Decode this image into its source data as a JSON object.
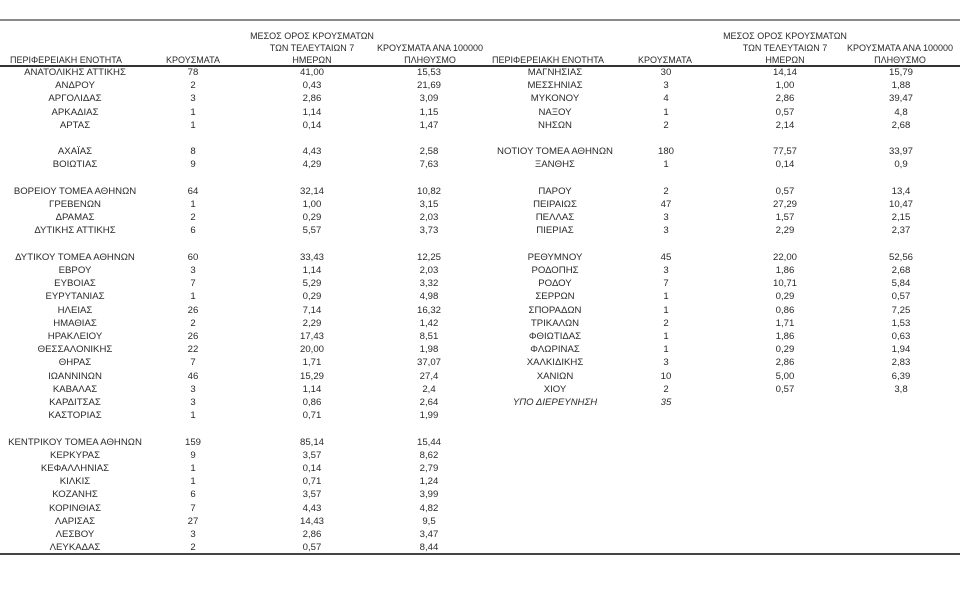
{
  "headers": {
    "region": "ΠΕΡΙΦΕΡΕΙΑΚΗ ΕΝΟΤΗΤΑ",
    "cases": "ΚΡΟΥΣΜΑΤΑ",
    "avg_line1": "ΜΕΣΟΣ ΟΡΟΣ ΚΡΟΥΣΜΑΤΩΝ",
    "avg_line2": "ΤΩΝ ΤΕΛΕΥΤΑΙΩΝ 7",
    "avg_line3": "ΗΜΕΡΩΝ",
    "rate_line1": "ΚΡΟΥΣΜΑΤΑ ΑΝΑ 100000",
    "rate_line2": "ΠΛΗΘΥΣΜΟ"
  },
  "left_rows": [
    {
      "name": "ΑΝΑΤΟΛΙΚΗΣ ΑΤΤΙΚΗΣ",
      "cases": "78",
      "avg": "41,00",
      "rate": "15,53"
    },
    {
      "name": "ΑΝΔΡΟΥ",
      "cases": "2",
      "avg": "0,43",
      "rate": "21,69"
    },
    {
      "name": "ΑΡΓΟΛΙΔΑΣ",
      "cases": "3",
      "avg": "2,86",
      "rate": "3,09"
    },
    {
      "name": "ΑΡΚΑΔΙΑΣ",
      "cases": "1",
      "avg": "1,14",
      "rate": "1,15"
    },
    {
      "name": "ΑΡΤΑΣ",
      "cases": "1",
      "avg": "0,14",
      "rate": "1,47"
    },
    null,
    {
      "name": "ΑΧΑΪΑΣ",
      "cases": "8",
      "avg": "4,43",
      "rate": "2,58"
    },
    {
      "name": "ΒΟΙΩΤΙΑΣ",
      "cases": "9",
      "avg": "4,29",
      "rate": "7,63"
    },
    null,
    {
      "name": "ΒΟΡΕΙΟΥ ΤΟΜΕΑ ΑΘΗΝΩΝ",
      "cases": "64",
      "avg": "32,14",
      "rate": "10,82"
    },
    {
      "name": "ΓΡΕΒΕΝΩΝ",
      "cases": "1",
      "avg": "1,00",
      "rate": "3,15"
    },
    {
      "name": "ΔΡΑΜΑΣ",
      "cases": "2",
      "avg": "0,29",
      "rate": "2,03"
    },
    {
      "name": "ΔΥΤΙΚΗΣ ΑΤΤΙΚΗΣ",
      "cases": "6",
      "avg": "5,57",
      "rate": "3,73"
    },
    null,
    {
      "name": "ΔΥΤΙΚΟΥ ΤΟΜΕΑ ΑΘΗΝΩΝ",
      "cases": "60",
      "avg": "33,43",
      "rate": "12,25"
    },
    {
      "name": "ΕΒΡΟΥ",
      "cases": "3",
      "avg": "1,14",
      "rate": "2,03"
    },
    {
      "name": "ΕΥΒΟΙΑΣ",
      "cases": "7",
      "avg": "5,29",
      "rate": "3,32"
    },
    {
      "name": "ΕΥΡΥΤΑΝΙΑΣ",
      "cases": "1",
      "avg": "0,29",
      "rate": "4,98"
    },
    {
      "name": "ΗΛΕΙΑΣ",
      "cases": "26",
      "avg": "7,14",
      "rate": "16,32"
    },
    {
      "name": "ΗΜΑΘΙΑΣ",
      "cases": "2",
      "avg": "2,29",
      "rate": "1,42"
    },
    {
      "name": "ΗΡΑΚΛΕΙΟΥ",
      "cases": "26",
      "avg": "17,43",
      "rate": "8,51"
    },
    {
      "name": "ΘΕΣΣΑΛΟΝΙΚΗΣ",
      "cases": "22",
      "avg": "20,00",
      "rate": "1,98"
    },
    {
      "name": "ΘΗΡΑΣ",
      "cases": "7",
      "avg": "1,71",
      "rate": "37,07"
    },
    {
      "name": "ΙΩΑΝΝΙΝΩΝ",
      "cases": "46",
      "avg": "15,29",
      "rate": "27,4"
    },
    {
      "name": "ΚΑΒΑΛΑΣ",
      "cases": "3",
      "avg": "1,14",
      "rate": "2,4"
    },
    {
      "name": "ΚΑΡΔΙΤΣΑΣ",
      "cases": "3",
      "avg": "0,86",
      "rate": "2,64"
    },
    {
      "name": "ΚΑΣΤΟΡΙΑΣ",
      "cases": "1",
      "avg": "0,71",
      "rate": "1,99"
    },
    null,
    {
      "name": "ΚΕΝΤΡΙΚΟΥ ΤΟΜΕΑ ΑΘΗΝΩΝ",
      "cases": "159",
      "avg": "85,14",
      "rate": "15,44"
    },
    {
      "name": "ΚΕΡΚΥΡΑΣ",
      "cases": "9",
      "avg": "3,57",
      "rate": "8,62"
    },
    {
      "name": "ΚΕΦΑΛΛΗΝΙΑΣ",
      "cases": "1",
      "avg": "0,14",
      "rate": "2,79"
    },
    {
      "name": "ΚΙΛΚΙΣ",
      "cases": "1",
      "avg": "0,71",
      "rate": "1,24"
    },
    {
      "name": "ΚΟΖΑΝΗΣ",
      "cases": "6",
      "avg": "3,57",
      "rate": "3,99"
    },
    {
      "name": "ΚΟΡΙΝΘΙΑΣ",
      "cases": "7",
      "avg": "4,43",
      "rate": "4,82"
    },
    {
      "name": "ΛΑΡΙΣΑΣ",
      "cases": "27",
      "avg": "14,43",
      "rate": "9,5"
    },
    {
      "name": "ΛΕΣΒΟΥ",
      "cases": "3",
      "avg": "2,86",
      "rate": "3,47"
    },
    {
      "name": "ΛΕΥΚΑΔΑΣ",
      "cases": "2",
      "avg": "0,57",
      "rate": "8,44"
    }
  ],
  "right_rows": [
    {
      "name": "ΜΑΓΝΗΣΙΑΣ",
      "cases": "30",
      "avg": "14,14",
      "rate": "15,79"
    },
    {
      "name": "ΜΕΣΣΗΝΙΑΣ",
      "cases": "3",
      "avg": "1,00",
      "rate": "1,88"
    },
    {
      "name": "ΜΥΚΟΝΟΥ",
      "cases": "4",
      "avg": "2,86",
      "rate": "39,47"
    },
    {
      "name": "ΝΑΞΟΥ",
      "cases": "1",
      "avg": "0,57",
      "rate": "4,8"
    },
    {
      "name": "ΝΗΣΩΝ",
      "cases": "2",
      "avg": "2,14",
      "rate": "2,68"
    },
    null,
    {
      "name": "ΝΟΤΙΟΥ ΤΟΜΕΑ ΑΘΗΝΩΝ",
      "cases": "180",
      "avg": "77,57",
      "rate": "33,97"
    },
    {
      "name": "ΞΑΝΘΗΣ",
      "cases": "1",
      "avg": "0,14",
      "rate": "0,9"
    },
    null,
    {
      "name": "ΠΑΡΟΥ",
      "cases": "2",
      "avg": "0,57",
      "rate": "13,4"
    },
    {
      "name": "ΠΕΙΡΑΙΩΣ",
      "cases": "47",
      "avg": "27,29",
      "rate": "10,47"
    },
    {
      "name": "ΠΕΛΛΑΣ",
      "cases": "3",
      "avg": "1,57",
      "rate": "2,15"
    },
    {
      "name": "ΠΙΕΡΙΑΣ",
      "cases": "3",
      "avg": "2,29",
      "rate": "2,37"
    },
    null,
    {
      "name": "ΡΕΘΥΜΝΟΥ",
      "cases": "45",
      "avg": "22,00",
      "rate": "52,56"
    },
    {
      "name": "ΡΟΔΟΠΗΣ",
      "cases": "3",
      "avg": "1,86",
      "rate": "2,68"
    },
    {
      "name": "ΡΟΔΟΥ",
      "cases": "7",
      "avg": "10,71",
      "rate": "5,84"
    },
    {
      "name": "ΣΕΡΡΩΝ",
      "cases": "1",
      "avg": "0,29",
      "rate": "0,57"
    },
    {
      "name": "ΣΠΟΡΑΔΩΝ",
      "cases": "1",
      "avg": "0,86",
      "rate": "7,25"
    },
    {
      "name": "ΤΡΙΚΑΛΩΝ",
      "cases": "2",
      "avg": "1,71",
      "rate": "1,53"
    },
    {
      "name": "ΦΘΙΩΤΙΔΑΣ",
      "cases": "1",
      "avg": "1,86",
      "rate": "0,63"
    },
    {
      "name": "ΦΛΩΡΙΝΑΣ",
      "cases": "1",
      "avg": "0,29",
      "rate": "1,94"
    },
    {
      "name": "ΧΑΛΚΙΔΙΚΗΣ",
      "cases": "3",
      "avg": "2,86",
      "rate": "2,83"
    },
    {
      "name": "ΧΑΝΙΩΝ",
      "cases": "10",
      "avg": "5,00",
      "rate": "6,39"
    },
    {
      "name": "ΧΙΟΥ",
      "cases": "2",
      "avg": "0,57",
      "rate": "3,8"
    },
    {
      "name": "ΥΠΟ ΔΙΕΡΕΥΝΗΣΗ",
      "cases": "35",
      "avg": "",
      "rate": "",
      "italic": true
    }
  ]
}
